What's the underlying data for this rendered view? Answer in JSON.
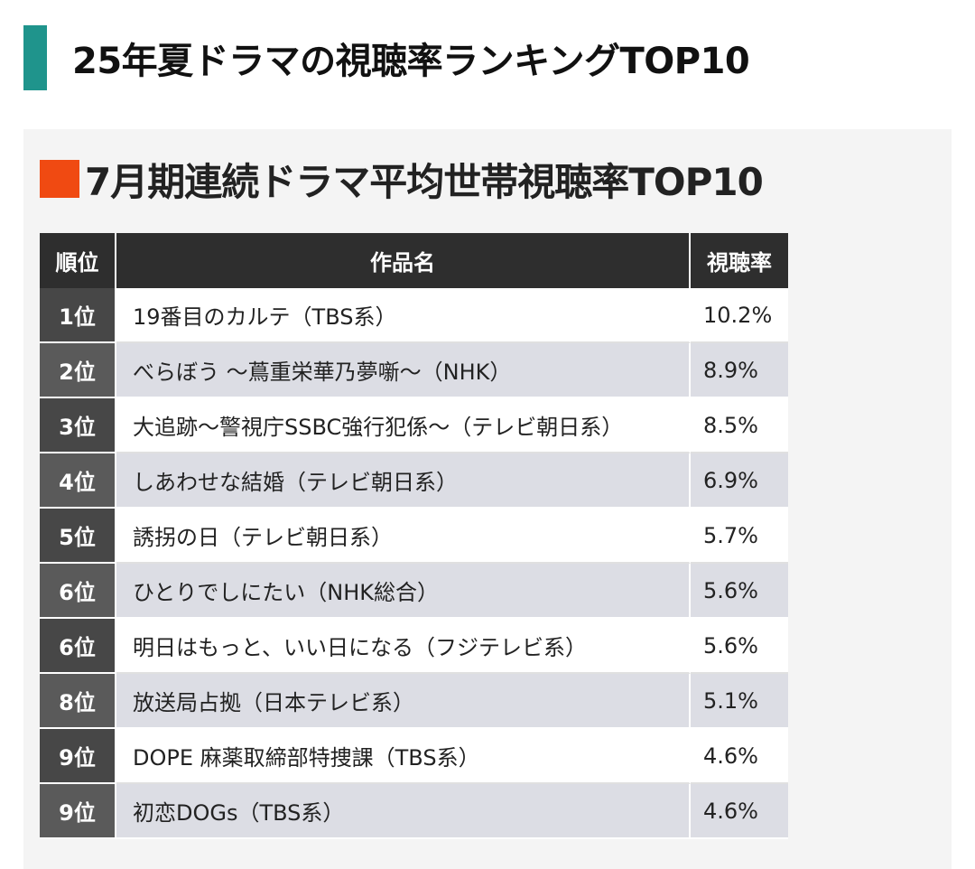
{
  "heading": {
    "title": "25年夏ドラマの視聴率ランキングTOP10",
    "accent_color": "#1f948c"
  },
  "card": {
    "title": "7月期連続ドラマ平均世帯視聴率TOP10",
    "accent_color": "#f04a12"
  },
  "table": {
    "headers": {
      "rank": "順位",
      "title": "作品名",
      "rate": "視聴率"
    },
    "rows": [
      {
        "rank": "1位",
        "title": "19番目のカルテ（TBS系）",
        "rate": "10.2%"
      },
      {
        "rank": "2位",
        "title": "べらぼう ～蔦重栄華乃夢噺～（NHK）",
        "rate": "8.9%"
      },
      {
        "rank": "3位",
        "title": "大追跡～警視庁SSBC強行犯係～（テレビ朝日系）",
        "rate": "8.5%"
      },
      {
        "rank": "4位",
        "title": "しあわせな結婚（テレビ朝日系）",
        "rate": "6.9%"
      },
      {
        "rank": "5位",
        "title": "誘拐の日（テレビ朝日系）",
        "rate": "5.7%"
      },
      {
        "rank": "6位",
        "title": "ひとりでしにたい（NHK総合）",
        "rate": "5.6%"
      },
      {
        "rank": "6位",
        "title": "明日はもっと、いい日になる（フジテレビ系）",
        "rate": "5.6%"
      },
      {
        "rank": "8位",
        "title": "放送局占拠（日本テレビ系）",
        "rate": "5.1%"
      },
      {
        "rank": "9位",
        "title": "DOPE 麻薬取締部特捜課（TBS系）",
        "rate": "4.6%"
      },
      {
        "rank": "9位",
        "title": "初恋DOGs（TBS系）",
        "rate": "4.6%"
      }
    ]
  }
}
